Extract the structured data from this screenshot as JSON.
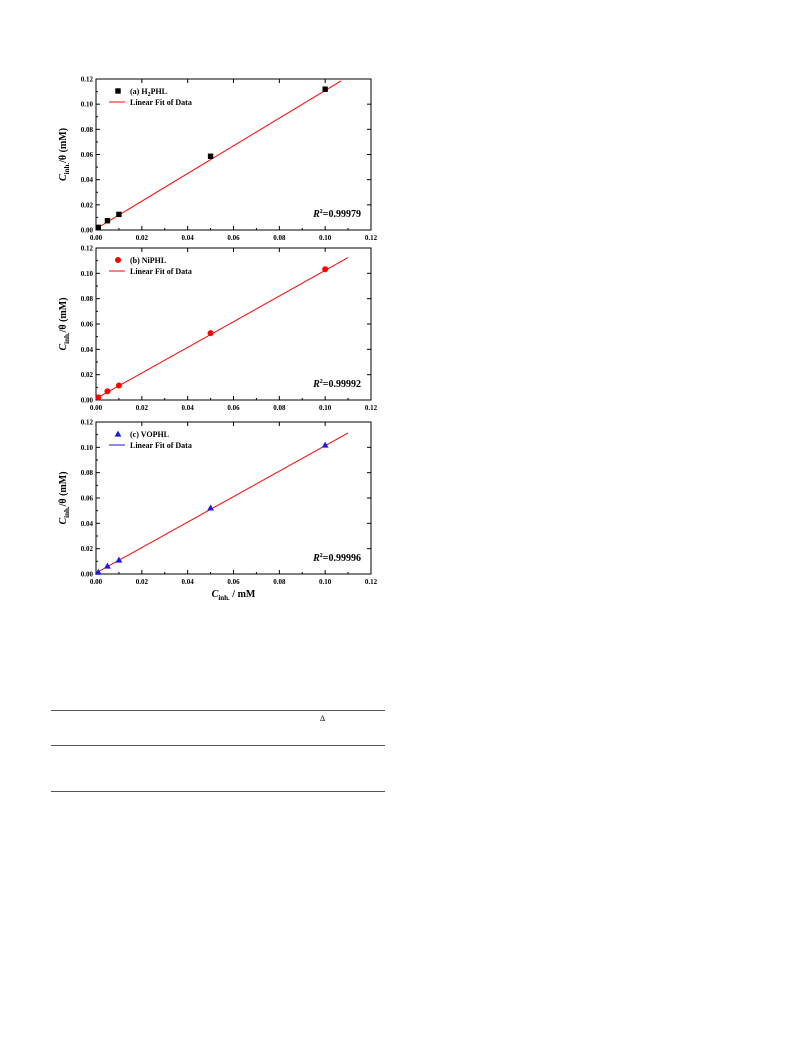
{
  "chart_data": [
    {
      "type": "scatter",
      "panel": "a",
      "x": [
        0.001,
        0.005,
        0.01,
        0.05,
        0.1
      ],
      "y": [
        0.0021,
        0.0074,
        0.0124,
        0.0586,
        0.1119
      ],
      "fit": {
        "slope": 1.1,
        "intercept": 0.0009,
        "x_range": [
          0.0,
          0.107
        ]
      },
      "series": [
        {
          "name_prefix": "(a) H",
          "name_sub": "2",
          "name_suffix": "PHL",
          "marker": "square",
          "color": "#000000"
        },
        {
          "name": "Linear Fit of Data",
          "marker": "line",
          "color": "#ff0000"
        }
      ],
      "r2_label": "R",
      "r2_sup": "2",
      "r2_value": "=0.99979",
      "ylabel_main": "C",
      "ylabel_sub": "inh.",
      "ylabel_rest": "/θ (mM)",
      "xlim": [
        0.0,
        0.12
      ],
      "ylim": [
        0.0,
        0.12
      ],
      "xticks": [
        "0.00",
        "0.02",
        "0.04",
        "0.06",
        "0.08",
        "0.10",
        "0.12"
      ],
      "yticks": [
        "0.00",
        "0.02",
        "0.04",
        "0.06",
        "0.08",
        "0.10",
        "0.12"
      ],
      "grid": false
    },
    {
      "type": "scatter",
      "panel": "b",
      "x": [
        0.001,
        0.005,
        0.01,
        0.05,
        0.1
      ],
      "y": [
        0.0021,
        0.0069,
        0.0114,
        0.0528,
        0.1032
      ],
      "fit": {
        "slope": 1.012,
        "intercept": 0.0011,
        "x_range": [
          0.0,
          0.11
        ]
      },
      "series": [
        {
          "name": "(b) NiPHL",
          "marker": "circle",
          "color": "#ff0000"
        },
        {
          "name": "Linear Fit of Data",
          "marker": "line",
          "color": "#ff0000"
        }
      ],
      "r2_label": "R",
      "r2_sup": "2",
      "r2_value": "=0.99992",
      "ylabel_main": "C",
      "ylabel_sub": "inh.",
      "ylabel_rest": "/θ (mM)",
      "xlim": [
        0.0,
        0.12
      ],
      "ylim": [
        0.0,
        0.12
      ],
      "xticks": [
        "0.00",
        "0.02",
        "0.04",
        "0.06",
        "0.08",
        "0.10",
        "0.12"
      ],
      "yticks": [
        "0.00",
        "0.02",
        "0.04",
        "0.06",
        "0.08",
        "0.10",
        "0.12"
      ],
      "grid": false
    },
    {
      "type": "scatter",
      "panel": "c",
      "x": [
        0.001,
        0.005,
        0.01,
        0.05,
        0.1
      ],
      "y": [
        0.0015,
        0.0063,
        0.011,
        0.0522,
        0.1018
      ],
      "fit": {
        "slope": 1.005,
        "intercept": 0.0008,
        "x_range": [
          0.0,
          0.11
        ]
      },
      "series": [
        {
          "name": "(c) VOPHL",
          "marker": "triangle",
          "color": "#1a1adc"
        },
        {
          "name": "Linear Fit of Data",
          "marker": "line",
          "color": "#1a1adc",
          "fit_color": "#ff0000"
        }
      ],
      "r2_label": "R",
      "r2_sup": "2",
      "r2_value": "=0.99996",
      "ylabel_main": "C",
      "ylabel_sub": "inh.",
      "ylabel_rest": "/θ (mM)",
      "xlabel_main": "C",
      "xlabel_sub": "inh.",
      "xlabel_rest": " / mM",
      "xlim": [
        0.0,
        0.12
      ],
      "ylim": [
        0.0,
        0.12
      ],
      "xticks": [
        "0.00",
        "0.02",
        "0.04",
        "0.06",
        "0.08",
        "0.10",
        "0.12"
      ],
      "yticks": [
        "0.00",
        "0.02",
        "0.04",
        "0.06",
        "0.08",
        "0.10",
        "0.12"
      ],
      "grid": false
    }
  ],
  "table": {
    "header_symbol": "Δ"
  }
}
